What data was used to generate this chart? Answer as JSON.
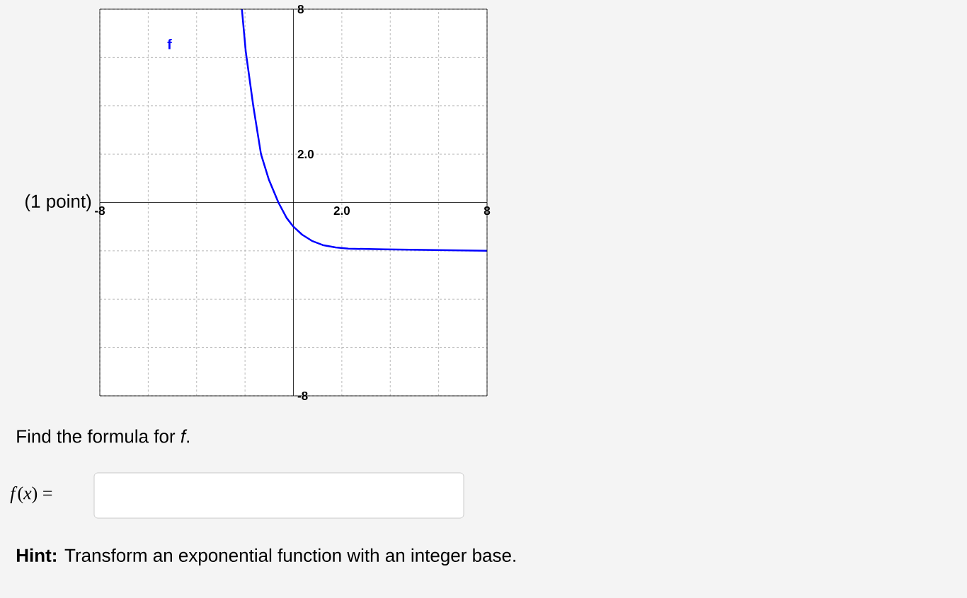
{
  "chart_data": {
    "type": "line",
    "xlim": [
      -8,
      8
    ],
    "ylim": [
      -8,
      8
    ],
    "xticks": [
      -8,
      {
        "value": -6,
        "label": null
      },
      {
        "value": -4,
        "label": null
      },
      {
        "value": -2,
        "label": null
      },
      {
        "value": 2,
        "label": "2.0"
      },
      {
        "value": 4,
        "label": null
      },
      {
        "value": 6,
        "label": null
      },
      8
    ],
    "yticks": [
      -8,
      {
        "value": -6,
        "label": null
      },
      {
        "value": -4,
        "label": null
      },
      {
        "value": -2,
        "label": null
      },
      {
        "value": 2,
        "label": "2.0"
      },
      {
        "value": 4,
        "label": null
      },
      {
        "value": 6,
        "label": null
      },
      8
    ],
    "grid": true,
    "series": [
      {
        "name": "f",
        "color": "#0000ff",
        "x": [
          -2.13,
          -1.97,
          -1.66,
          -1.34,
          -1.02,
          -0.62,
          -0.28,
          0,
          0.36,
          0.79,
          1.21,
          1.74,
          2.27,
          3.76,
          8
        ],
        "values": [
          8,
          6.25,
          4.0,
          2.0,
          0.96,
          0,
          -0.64,
          -1.0,
          -1.33,
          -1.6,
          -1.76,
          -1.86,
          -1.91,
          -1.94,
          -2.0
        ]
      }
    ],
    "annotations": [
      "(1 point)",
      "Find the formula for *f*.",
      "*f*(*x*) =",
      "**Hint:** Transform an exponential function with an integer base."
    ]
  }
}
